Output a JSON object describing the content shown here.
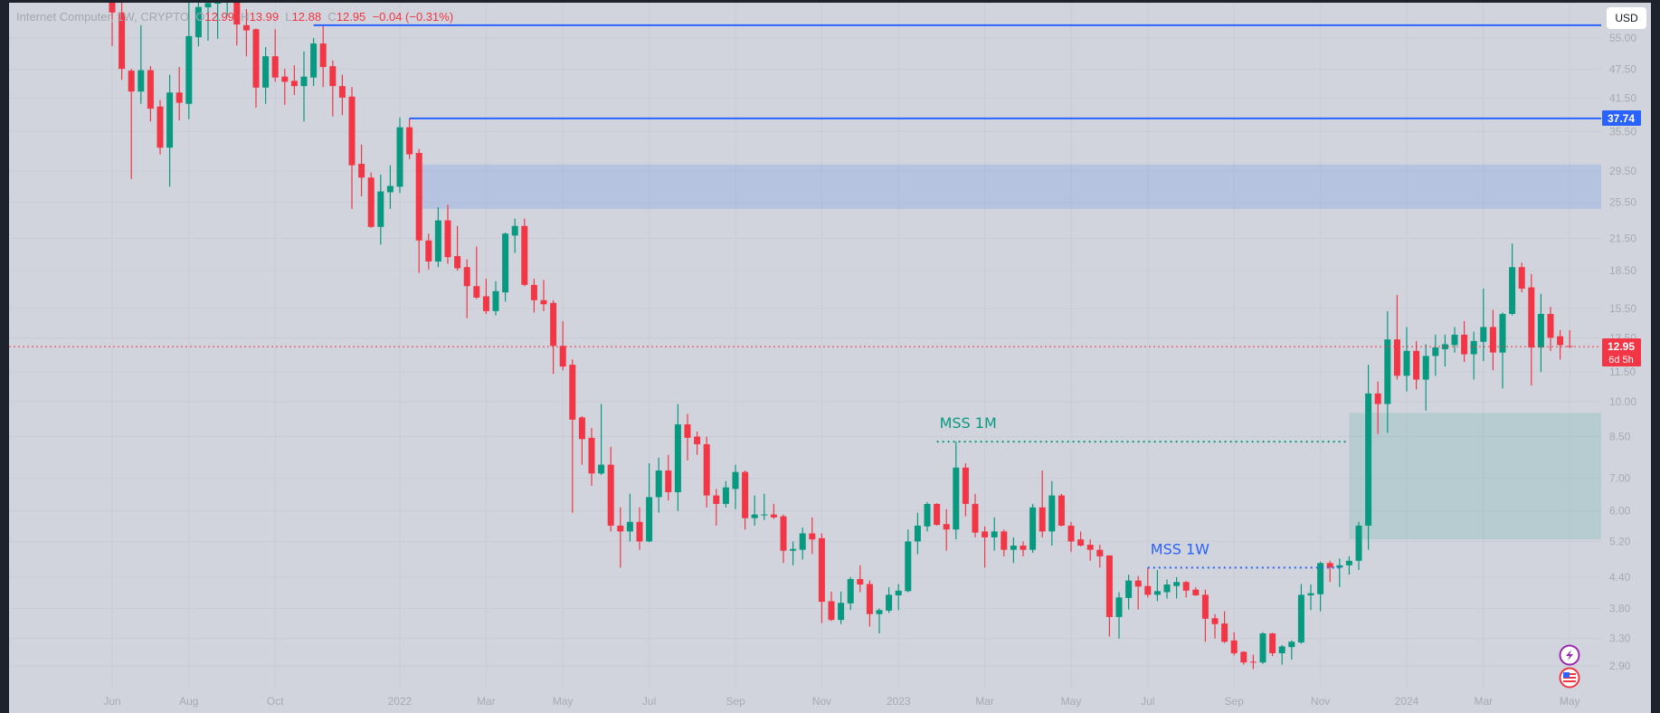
{
  "header": {
    "symbol": "Internet Computer",
    "interval": "1W",
    "exchange": "CRYPTO",
    "open_label": "O",
    "open": "12.99",
    "high_label": "H",
    "high": "13.99",
    "low_label": "L",
    "low": "12.88",
    "close_label": "C",
    "close": "12.95",
    "change": "−0.04 (−0.31%)"
  },
  "currency_button": "USD",
  "price_labels": {
    "level_label": "37.74",
    "last_price": "12.95",
    "countdown": "6d 5h"
  },
  "colors": {
    "up": "#089981",
    "down": "#f23645",
    "line_blue": "#2962ff",
    "background": "#d1d4dc",
    "frame": "#1e222d"
  },
  "icons": [
    "lightning-icon",
    "us-flag-icon"
  ],
  "chart_data": {
    "type": "candlestick",
    "interval": "1W",
    "y_scale": "log",
    "y_ticks": [
      "55.00",
      "47.50",
      "41.50",
      "35.50",
      "29.50",
      "25.50",
      "21.50",
      "18.50",
      "15.50",
      "13.50",
      "11.50",
      "10.00",
      "8.50",
      "7.00",
      "6.00",
      "5.20",
      "4.40",
      "3.80",
      "3.30",
      "2.90"
    ],
    "x_ticks": [
      {
        "label": "Jun",
        "date": "2021-05-31"
      },
      {
        "label": "Aug",
        "date": "2021-07-26"
      },
      {
        "label": "Oct",
        "date": "2021-09-27"
      },
      {
        "label": "2022",
        "date": "2021-12-27"
      },
      {
        "label": "Mar",
        "date": "2022-02-28"
      },
      {
        "label": "May",
        "date": "2022-04-25"
      },
      {
        "label": "Jul",
        "date": "2022-06-27"
      },
      {
        "label": "Sep",
        "date": "2022-08-29"
      },
      {
        "label": "Nov",
        "date": "2022-10-31"
      },
      {
        "label": "2023",
        "date": "2022-12-26"
      },
      {
        "label": "Mar",
        "date": "2023-02-27"
      },
      {
        "label": "May",
        "date": "2023-05-01"
      },
      {
        "label": "Jul",
        "date": "2023-06-26"
      },
      {
        "label": "Sep",
        "date": "2023-08-28"
      },
      {
        "label": "Nov",
        "date": "2023-10-30"
      },
      {
        "label": "2024",
        "date": "2024-01-01"
      },
      {
        "label": "Mar",
        "date": "2024-02-26"
      },
      {
        "label": "May",
        "date": "2024-04-29"
      }
    ],
    "grid": true,
    "last_price": 12.95,
    "annotations": {
      "horizontal_rays": [
        {
          "from": "2021-10-25",
          "price": 58.4,
          "color": "#2962ff"
        },
        {
          "from": "2022-01-03",
          "price": 37.74,
          "color": "#2962ff"
        }
      ],
      "zones": [
        {
          "from": "2022-01-10",
          "top": 30.4,
          "bottom": 24.7,
          "color": "rgba(120,160,235,0.32)"
        },
        {
          "from": "2023-11-20",
          "top": 9.5,
          "bottom": 5.25,
          "color": "rgba(8,153,129,0.13)"
        }
      ],
      "levels": [
        {
          "label": "MSS 1M",
          "from": "2023-01-23",
          "to": "2023-11-20",
          "price": 8.3,
          "color": "#089981"
        },
        {
          "label": "MSS 1W",
          "from": "2023-06-26",
          "to": "2023-11-13",
          "price": 4.6,
          "color": "#2962ff"
        }
      ]
    },
    "candles": [
      [
        "2021-05-31",
        80,
        92,
        53,
        62
      ],
      [
        "2021-06-07",
        62,
        66,
        45.2,
        47.6
      ],
      [
        "2021-06-14",
        47.2,
        47.6,
        28.4,
        42.8
      ],
      [
        "2021-06-21",
        42.8,
        58.4,
        40.4,
        47.3
      ],
      [
        "2021-06-28",
        47.3,
        48.2,
        37.2,
        39.5
      ],
      [
        "2021-07-05",
        39.9,
        41.1,
        31.9,
        32.9
      ],
      [
        "2021-07-12",
        32.9,
        46.3,
        27.4,
        42.6
      ],
      [
        "2021-07-19",
        42.6,
        48.0,
        37.4,
        40.6
      ],
      [
        "2021-07-26",
        40.4,
        66,
        37.6,
        55.5
      ],
      [
        "2021-08-02",
        55.2,
        70,
        52.9,
        63.6
      ],
      [
        "2021-08-09",
        63.5,
        70,
        54.3,
        64.8
      ],
      [
        "2021-08-16",
        64.6,
        70,
        54.8,
        66
      ],
      [
        "2021-08-23",
        66,
        72,
        61,
        68
      ],
      [
        "2021-08-30",
        68,
        72,
        53.1,
        58.6
      ],
      [
        "2021-09-06",
        58.4,
        63,
        50.5,
        57.0
      ],
      [
        "2021-09-13",
        57.3,
        57.5,
        39.7,
        43.6
      ],
      [
        "2021-09-20",
        43.6,
        52.7,
        40.4,
        50.5
      ],
      [
        "2021-09-27",
        50.5,
        57.3,
        44.8,
        45.7
      ],
      [
        "2021-10-04",
        45.9,
        47.6,
        40.2,
        44.8
      ],
      [
        "2021-10-11",
        45.0,
        48.4,
        42.1,
        43.9
      ],
      [
        "2021-10-18",
        43.9,
        51.7,
        37.2,
        45.9
      ],
      [
        "2021-10-25",
        45.7,
        55.0,
        43.9,
        53.6
      ],
      [
        "2021-11-01",
        53.6,
        58.6,
        43.7,
        48.0
      ],
      [
        "2021-11-08",
        48.2,
        49.5,
        38.1,
        43.9
      ],
      [
        "2021-11-15",
        43.9,
        46.3,
        38.3,
        41.6
      ],
      [
        "2021-11-22",
        41.8,
        43.7,
        24.7,
        30.3
      ],
      [
        "2021-11-29",
        30.5,
        33.4,
        26.2,
        28.6
      ],
      [
        "2021-12-06",
        28.6,
        29.3,
        22.6,
        22.7
      ],
      [
        "2021-12-13",
        22.7,
        29.0,
        20.9,
        26.8
      ],
      [
        "2021-12-20",
        26.7,
        30.3,
        24.7,
        27.5
      ],
      [
        "2021-12-27",
        27.4,
        37.9,
        26.6,
        36.2
      ],
      [
        "2022-01-03",
        36.2,
        37.74,
        31.2,
        31.9
      ],
      [
        "2022-01-10",
        32.1,
        32.7,
        18.3,
        21.3
      ],
      [
        "2022-01-17",
        21.3,
        22.0,
        18.6,
        19.3
      ],
      [
        "2022-01-24",
        19.3,
        24.9,
        18.8,
        23.4
      ],
      [
        "2022-01-31",
        23.4,
        25.2,
        19.1,
        19.7
      ],
      [
        "2022-02-07",
        19.8,
        22.8,
        18.5,
        18.7
      ],
      [
        "2022-02-14",
        18.8,
        19.5,
        14.8,
        17.2
      ],
      [
        "2022-02-21",
        17.2,
        20.7,
        16.2,
        16.3
      ],
      [
        "2022-02-28",
        16.4,
        17.8,
        15.1,
        15.3
      ],
      [
        "2022-03-07",
        15.3,
        17.6,
        15.0,
        16.8
      ],
      [
        "2022-03-14",
        16.7,
        22.1,
        16.0,
        22.0
      ],
      [
        "2022-03-21",
        21.8,
        23.6,
        20.1,
        22.8
      ],
      [
        "2022-03-28",
        22.8,
        23.6,
        17.2,
        17.3
      ],
      [
        "2022-04-04",
        17.3,
        17.8,
        15.2,
        16.1
      ],
      [
        "2022-04-11",
        16.1,
        17.7,
        15.3,
        15.8
      ],
      [
        "2022-04-18",
        15.9,
        16.1,
        11.4,
        13.0
      ],
      [
        "2022-04-25",
        13.0,
        14.6,
        11.6,
        11.8
      ],
      [
        "2022-05-02",
        11.9,
        12.2,
        5.95,
        9.2
      ],
      [
        "2022-05-09",
        9.3,
        9.35,
        7.45,
        8.4
      ],
      [
        "2022-05-16",
        8.45,
        8.85,
        6.75,
        7.15
      ],
      [
        "2022-05-23",
        7.15,
        9.9,
        7.1,
        7.45
      ],
      [
        "2022-05-30",
        7.45,
        8.1,
        5.45,
        5.6
      ],
      [
        "2022-06-06",
        5.6,
        6.1,
        4.6,
        5.45
      ],
      [
        "2022-06-13",
        5.45,
        6.5,
        5.2,
        5.7
      ],
      [
        "2022-06-20",
        5.7,
        6.1,
        5.0,
        5.2
      ],
      [
        "2022-06-27",
        5.2,
        7.5,
        5.18,
        6.4
      ],
      [
        "2022-07-04",
        6.4,
        7.7,
        5.95,
        7.25
      ],
      [
        "2022-07-11",
        7.25,
        7.8,
        6.3,
        6.55
      ],
      [
        "2022-07-18",
        6.55,
        9.9,
        6.0,
        9.0
      ],
      [
        "2022-07-25",
        9.0,
        9.45,
        7.6,
        8.45
      ],
      [
        "2022-08-01",
        8.5,
        8.7,
        7.8,
        8.2
      ],
      [
        "2022-08-08",
        8.2,
        8.5,
        6.1,
        6.45
      ],
      [
        "2022-08-15",
        6.45,
        6.65,
        5.6,
        6.2
      ],
      [
        "2022-08-22",
        6.2,
        6.9,
        6.1,
        6.7
      ],
      [
        "2022-08-29",
        6.65,
        7.45,
        6.05,
        7.2
      ],
      [
        "2022-09-05",
        7.2,
        7.25,
        5.5,
        5.8
      ],
      [
        "2022-09-12",
        5.8,
        6.45,
        5.6,
        5.9
      ],
      [
        "2022-09-19",
        5.9,
        6.5,
        5.75,
        5.9
      ],
      [
        "2022-09-26",
        5.9,
        6.2,
        5.78,
        5.82
      ],
      [
        "2022-10-03",
        5.85,
        5.9,
        4.7,
        4.98
      ],
      [
        "2022-10-10",
        4.98,
        5.2,
        4.65,
        5.02
      ],
      [
        "2022-10-17",
        5.0,
        5.55,
        4.78,
        5.4
      ],
      [
        "2022-10-24",
        5.4,
        5.82,
        4.9,
        5.25
      ],
      [
        "2022-10-31",
        5.28,
        5.4,
        3.55,
        3.92
      ],
      [
        "2022-11-07",
        3.93,
        4.11,
        3.58,
        3.6
      ],
      [
        "2022-11-14",
        3.6,
        4.11,
        3.53,
        3.9
      ],
      [
        "2022-11-21",
        3.89,
        4.4,
        3.77,
        4.36
      ],
      [
        "2022-11-28",
        4.36,
        4.65,
        4.1,
        4.25
      ],
      [
        "2022-12-05",
        4.26,
        4.33,
        3.49,
        3.7
      ],
      [
        "2022-12-12",
        3.7,
        3.8,
        3.38,
        3.77
      ],
      [
        "2022-12-19",
        3.76,
        4.2,
        3.72,
        4.05
      ],
      [
        "2022-12-26",
        4.04,
        4.26,
        3.77,
        4.13
      ],
      [
        "2023-01-02",
        4.12,
        5.5,
        4.1,
        5.2
      ],
      [
        "2023-01-09",
        5.2,
        5.95,
        4.9,
        5.6
      ],
      [
        "2023-01-16",
        5.58,
        6.25,
        5.45,
        6.2
      ],
      [
        "2023-01-23",
        6.2,
        6.22,
        5.6,
        5.62
      ],
      [
        "2023-01-30",
        5.64,
        6.05,
        4.98,
        5.5
      ],
      [
        "2023-02-06",
        5.5,
        8.3,
        5.25,
        7.35
      ],
      [
        "2023-02-13",
        7.35,
        7.5,
        5.85,
        6.2
      ],
      [
        "2023-02-20",
        6.2,
        6.5,
        5.3,
        5.42
      ],
      [
        "2023-02-27",
        5.45,
        5.58,
        4.6,
        5.3
      ],
      [
        "2023-03-06",
        5.3,
        5.82,
        4.98,
        5.45
      ],
      [
        "2023-03-13",
        5.45,
        5.5,
        4.85,
        5.0
      ],
      [
        "2023-03-20",
        5.0,
        5.3,
        4.7,
        5.1
      ],
      [
        "2023-03-27",
        5.1,
        5.2,
        4.85,
        5.0
      ],
      [
        "2023-04-03",
        5.0,
        6.2,
        4.93,
        6.1
      ],
      [
        "2023-04-10",
        6.1,
        7.25,
        5.3,
        5.45
      ],
      [
        "2023-04-17",
        5.45,
        6.9,
        5.1,
        6.45
      ],
      [
        "2023-04-24",
        6.45,
        6.5,
        5.58,
        5.6
      ],
      [
        "2023-05-01",
        5.6,
        5.7,
        4.95,
        5.2
      ],
      [
        "2023-05-08",
        5.25,
        5.45,
        5.08,
        5.1
      ],
      [
        "2023-05-15",
        5.12,
        5.25,
        4.75,
        5.0
      ],
      [
        "2023-05-22",
        5.0,
        5.12,
        4.6,
        4.85
      ],
      [
        "2023-05-29",
        4.87,
        4.87,
        3.33,
        3.65
      ],
      [
        "2023-06-05",
        3.65,
        4.1,
        3.3,
        4.0
      ],
      [
        "2023-06-12",
        3.99,
        4.45,
        3.78,
        4.33
      ],
      [
        "2023-06-19",
        4.33,
        4.42,
        3.78,
        4.21
      ],
      [
        "2023-06-26",
        4.22,
        4.6,
        4.0,
        4.05
      ],
      [
        "2023-07-03",
        4.05,
        4.55,
        3.93,
        4.12
      ],
      [
        "2023-07-10",
        4.1,
        4.35,
        3.98,
        4.25
      ],
      [
        "2023-07-17",
        4.22,
        4.4,
        3.98,
        4.3
      ],
      [
        "2023-07-24",
        4.3,
        4.32,
        4.0,
        4.13
      ],
      [
        "2023-07-31",
        4.15,
        4.2,
        4.03,
        4.04
      ],
      [
        "2023-08-07",
        4.05,
        4.15,
        3.25,
        3.62
      ],
      [
        "2023-08-14",
        3.63,
        3.7,
        3.3,
        3.53
      ],
      [
        "2023-08-21",
        3.54,
        3.75,
        3.23,
        3.25
      ],
      [
        "2023-08-28",
        3.27,
        3.4,
        3.05,
        3.08
      ],
      [
        "2023-09-04",
        3.1,
        3.11,
        2.92,
        2.95
      ],
      [
        "2023-09-11",
        2.96,
        3.06,
        2.86,
        2.95
      ],
      [
        "2023-09-18",
        2.95,
        3.4,
        2.93,
        3.38
      ],
      [
        "2023-09-25",
        3.38,
        3.39,
        3.04,
        3.08
      ],
      [
        "2023-10-02",
        3.08,
        3.2,
        2.92,
        3.18
      ],
      [
        "2023-10-09",
        3.17,
        3.27,
        2.99,
        3.25
      ],
      [
        "2023-10-16",
        3.24,
        4.26,
        3.22,
        4.05
      ],
      [
        "2023-10-23",
        4.04,
        4.25,
        3.77,
        4.08
      ],
      [
        "2023-10-30",
        4.06,
        4.73,
        3.75,
        4.7
      ],
      [
        "2023-11-06",
        4.7,
        4.75,
        4.3,
        4.6
      ],
      [
        "2023-11-13",
        4.6,
        4.8,
        4.2,
        4.65
      ],
      [
        "2023-11-20",
        4.65,
        4.85,
        4.45,
        4.75
      ],
      [
        "2023-11-27",
        4.75,
        5.7,
        4.55,
        5.6
      ],
      [
        "2023-12-04",
        5.6,
        11.9,
        5.0,
        10.4
      ],
      [
        "2023-12-11",
        10.4,
        11.0,
        8.6,
        9.9
      ],
      [
        "2023-12-18",
        9.9,
        15.3,
        8.65,
        13.4
      ],
      [
        "2023-12-25",
        13.4,
        16.5,
        11.1,
        11.3
      ],
      [
        "2024-01-01",
        11.3,
        14.2,
        10.5,
        12.7
      ],
      [
        "2024-01-08",
        12.7,
        13.3,
        10.6,
        11.1
      ],
      [
        "2024-01-15",
        11.1,
        13.1,
        9.6,
        12.4
      ],
      [
        "2024-01-22",
        12.4,
        13.7,
        11.3,
        12.9
      ],
      [
        "2024-01-29",
        12.8,
        13.7,
        11.8,
        13.1
      ],
      [
        "2024-02-05",
        13.05,
        14.2,
        12.6,
        13.7
      ],
      [
        "2024-02-12",
        13.7,
        14.6,
        12.05,
        12.5
      ],
      [
        "2024-02-19",
        12.5,
        13.9,
        11.1,
        13.3
      ],
      [
        "2024-02-26",
        13.25,
        17.0,
        12.1,
        14.2
      ],
      [
        "2024-03-04",
        14.2,
        15.4,
        11.6,
        12.6
      ],
      [
        "2024-03-11",
        12.6,
        15.2,
        10.65,
        15.1
      ],
      [
        "2024-03-18",
        15.1,
        21.0,
        15.0,
        18.8
      ],
      [
        "2024-03-25",
        18.8,
        19.2,
        16.7,
        17.0
      ],
      [
        "2024-04-01",
        17.1,
        18.2,
        10.8,
        12.9
      ],
      [
        "2024-04-08",
        12.9,
        16.6,
        11.5,
        15.1
      ],
      [
        "2024-04-15",
        15.1,
        15.6,
        12.7,
        13.5
      ],
      [
        "2024-04-22",
        13.6,
        14.0,
        12.2,
        13.05
      ],
      [
        "2024-04-29",
        12.99,
        13.99,
        12.88,
        12.95
      ]
    ]
  }
}
